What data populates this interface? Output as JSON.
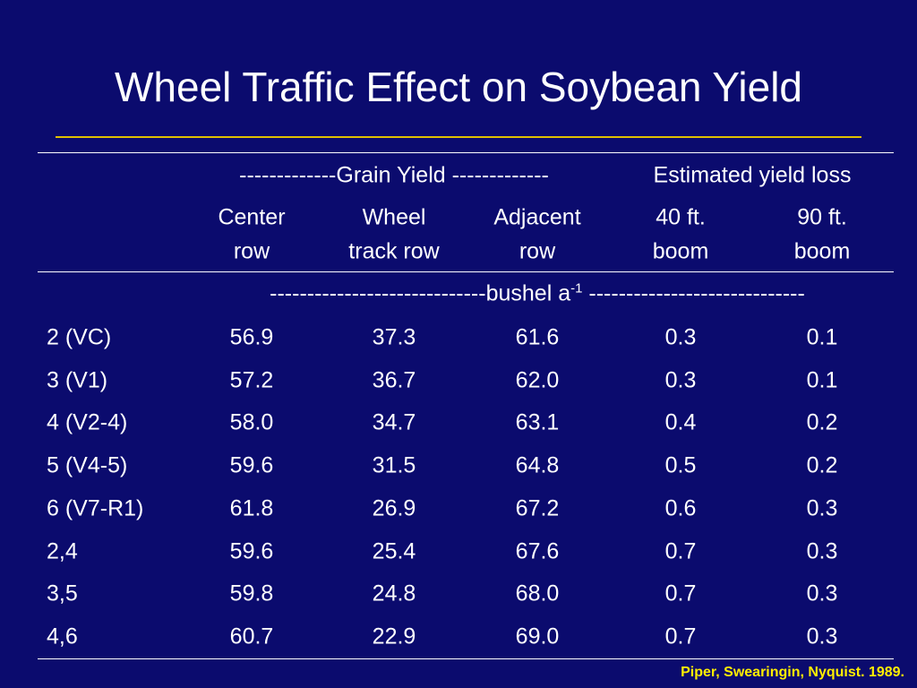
{
  "title": "Wheel Traffic Effect on Soybean Yield",
  "table": {
    "group_headers": [
      "-------------Grain Yield -------------",
      "Estimated yield loss"
    ],
    "column_headers": [
      [
        "Center",
        "row"
      ],
      [
        "Wheel",
        "track row"
      ],
      [
        "Adjacent",
        "row"
      ],
      [
        "40 ft.",
        "boom"
      ],
      [
        "90 ft.",
        "boom"
      ]
    ],
    "units": {
      "prefix": "-----------------------------bushel a",
      "superscript": "-1",
      "suffix": " -----------------------------"
    },
    "rows": [
      [
        "2 (VC)",
        "56.9",
        "37.3",
        "61.6",
        "0.3",
        "0.1"
      ],
      [
        "3 (V1)",
        "57.2",
        "36.7",
        "62.0",
        "0.3",
        "0.1"
      ],
      [
        "4 (V2-4)",
        "58.0",
        "34.7",
        "63.1",
        "0.4",
        "0.2"
      ],
      [
        "5 (V4-5)",
        "59.6",
        "31.5",
        "64.8",
        "0.5",
        "0.2"
      ],
      [
        "6 (V7-R1)",
        "61.8",
        "26.9",
        "67.2",
        "0.6",
        "0.3"
      ],
      [
        "2,4",
        "59.6",
        "25.4",
        "67.6",
        "0.7",
        "0.3"
      ],
      [
        "3,5",
        "59.8",
        "24.8",
        "68.0",
        "0.7",
        "0.3"
      ],
      [
        "4,6",
        "60.7",
        "22.9",
        "69.0",
        "0.7",
        "0.3"
      ]
    ]
  },
  "citation": "Piper, Swearingin, Nyquist. 1989."
}
